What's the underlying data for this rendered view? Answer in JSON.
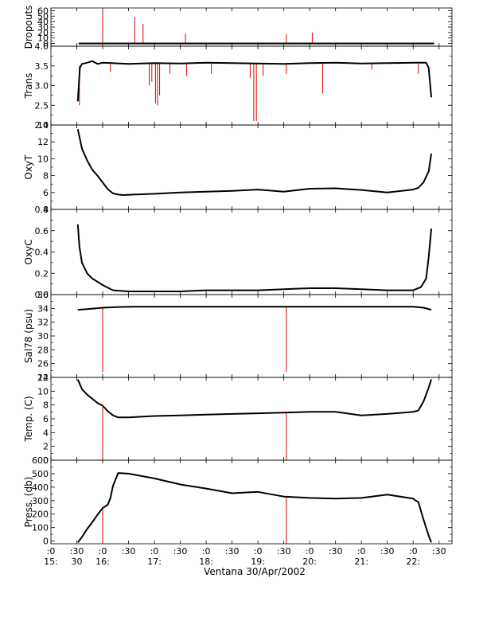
{
  "colors": {
    "data": "#000000",
    "spike": "#dd0000",
    "axis": "#000000"
  },
  "chart_data": {
    "type": "line",
    "xlabel": "Ventana 30/Apr/2002",
    "x_ticks": [
      {
        "t": 15.0,
        "top": ":0",
        "bottom": "15:"
      },
      {
        "t": 15.5,
        "top": ":30",
        "bottom": "30"
      },
      {
        "t": 16.0,
        "top": ":0",
        "bottom": "16:"
      },
      {
        "t": 16.5,
        "top": ":30",
        "bottom": ""
      },
      {
        "t": 17.0,
        "top": ":0",
        "bottom": "17:"
      },
      {
        "t": 17.5,
        "top": ":30",
        "bottom": ""
      },
      {
        "t": 18.0,
        "top": ":0",
        "bottom": "18:"
      },
      {
        "t": 18.5,
        "top": ":30",
        "bottom": ""
      },
      {
        "t": 19.0,
        "top": ":0",
        "bottom": "19:"
      },
      {
        "t": 19.5,
        "top": ":30",
        "bottom": ""
      },
      {
        "t": 20.0,
        "top": ":0",
        "bottom": "20:"
      },
      {
        "t": 20.5,
        "top": ":30",
        "bottom": ""
      },
      {
        "t": 21.0,
        "top": ":0",
        "bottom": "21:"
      },
      {
        "t": 21.5,
        "top": ":30",
        "bottom": ""
      },
      {
        "t": 22.0,
        "top": ":0",
        "bottom": "22:"
      },
      {
        "t": 22.5,
        "top": ":30",
        "bottom": ""
      }
    ],
    "xlim": [
      15.0,
      22.75
    ],
    "panels": [
      {
        "id": "dropouts",
        "ylabel": "Dropouts",
        "ylim": [
          -5,
          65
        ],
        "y_ticks": [
          "0",
          "10",
          "20",
          "30",
          "40",
          "50",
          "60"
        ],
        "y_tick_values": [
          0,
          10,
          20,
          30,
          40,
          50,
          60
        ],
        "series": [
          {
            "x": [
              15.55,
              22.4
            ],
            "y": [
              0,
              0
            ]
          }
        ],
        "spikes": [
          {
            "x": 16.0,
            "from": 0,
            "to": 62
          },
          {
            "x": 16.62,
            "from": 0,
            "to": 48
          },
          {
            "x": 16.78,
            "from": 0,
            "to": 36
          },
          {
            "x": 17.6,
            "from": 0,
            "to": 18
          },
          {
            "x": 19.55,
            "from": 0,
            "to": 17
          },
          {
            "x": 20.05,
            "from": 0,
            "to": 20
          }
        ]
      },
      {
        "id": "trans",
        "ylabel": "Trans",
        "ylim": [
          2.0,
          4.0
        ],
        "y_ticks": [
          "2.0",
          "2.5",
          "3.0",
          "3.5",
          "4.0"
        ],
        "y_tick_values": [
          2.0,
          2.5,
          3.0,
          3.5,
          4.0
        ],
        "series": [
          {
            "x": [
              15.52,
              15.56,
              15.6,
              15.7,
              15.8,
              15.9,
              16.0,
              16.5,
              17.0,
              17.5,
              18.0,
              18.5,
              19.0,
              19.5,
              20.0,
              20.5,
              21.0,
              21.5,
              22.0,
              22.25,
              22.3,
              22.33,
              22.35
            ],
            "y": [
              2.6,
              3.45,
              3.55,
              3.58,
              3.62,
              3.55,
              3.58,
              3.55,
              3.57,
              3.56,
              3.58,
              3.57,
              3.56,
              3.55,
              3.57,
              3.58,
              3.56,
              3.57,
              3.58,
              3.58,
              3.45,
              3.0,
              2.7
            ]
          }
        ],
        "spikes": [
          {
            "x": 15.55,
            "from": 3.5,
            "to": 2.5
          },
          {
            "x": 16.15,
            "from": 3.55,
            "to": 3.35
          },
          {
            "x": 16.9,
            "from": 3.55,
            "to": 3.0
          },
          {
            "x": 16.95,
            "from": 3.55,
            "to": 3.1
          },
          {
            "x": 17.02,
            "from": 3.55,
            "to": 2.55
          },
          {
            "x": 17.06,
            "from": 3.55,
            "to": 2.5
          },
          {
            "x": 17.1,
            "from": 3.55,
            "to": 2.75
          },
          {
            "x": 17.3,
            "from": 3.55,
            "to": 3.3
          },
          {
            "x": 17.62,
            "from": 3.55,
            "to": 3.25
          },
          {
            "x": 18.1,
            "from": 3.55,
            "to": 3.3
          },
          {
            "x": 18.85,
            "from": 3.55,
            "to": 3.2
          },
          {
            "x": 18.92,
            "from": 3.55,
            "to": 2.1
          },
          {
            "x": 18.97,
            "from": 3.55,
            "to": 2.1
          },
          {
            "x": 19.1,
            "from": 3.55,
            "to": 3.25
          },
          {
            "x": 19.55,
            "from": 3.55,
            "to": 3.3
          },
          {
            "x": 20.25,
            "from": 3.55,
            "to": 2.8
          },
          {
            "x": 21.2,
            "from": 3.55,
            "to": 3.4
          },
          {
            "x": 22.1,
            "from": 3.55,
            "to": 3.3
          }
        ]
      },
      {
        "id": "oxyt",
        "ylabel": "OxyT",
        "ylim": [
          4,
          14
        ],
        "y_ticks": [
          "4",
          "6",
          "8",
          "10",
          "12",
          "14"
        ],
        "y_tick_values": [
          4,
          6,
          8,
          10,
          12,
          14
        ],
        "series": [
          {
            "x": [
              15.52,
              15.6,
              15.7,
              15.8,
              15.9,
              16.0,
              16.1,
              16.2,
              16.3,
              16.4,
              16.6,
              17.0,
              17.5,
              18.0,
              18.5,
              19.0,
              19.5,
              20.0,
              20.5,
              21.0,
              21.5,
              22.0,
              22.1,
              22.2,
              22.3,
              22.35
            ],
            "y": [
              13.5,
              11.2,
              9.8,
              8.7,
              8.0,
              7.2,
              6.4,
              5.9,
              5.75,
              5.7,
              5.75,
              5.85,
              6.0,
              6.1,
              6.2,
              6.35,
              6.1,
              6.45,
              6.5,
              6.3,
              6.0,
              6.35,
              6.55,
              7.2,
              8.5,
              10.6
            ]
          }
        ],
        "spikes": []
      },
      {
        "id": "oxyc",
        "ylabel": "OxyC",
        "ylim": [
          0.0,
          0.8
        ],
        "y_ticks": [
          "0.0",
          "0.2",
          "0.4",
          "0.6",
          "0.8"
        ],
        "y_tick_values": [
          0.0,
          0.2,
          0.4,
          0.6,
          0.8
        ],
        "series": [
          {
            "x": [
              15.52,
              15.55,
              15.6,
              15.7,
              15.8,
              15.9,
              16.0,
              16.2,
              16.5,
              17.0,
              17.5,
              18.0,
              18.5,
              19.0,
              19.5,
              20.0,
              20.5,
              21.0,
              21.5,
              22.0,
              22.15,
              22.25,
              22.3,
              22.35
            ],
            "y": [
              0.66,
              0.45,
              0.3,
              0.2,
              0.15,
              0.12,
              0.09,
              0.04,
              0.03,
              0.03,
              0.03,
              0.04,
              0.04,
              0.04,
              0.05,
              0.06,
              0.06,
              0.05,
              0.04,
              0.04,
              0.07,
              0.15,
              0.35,
              0.62
            ]
          }
        ],
        "spikes": []
      },
      {
        "id": "sal78",
        "ylabel": "Sal78 (psu)",
        "ylim": [
          24,
          36
        ],
        "y_ticks": [
          "24",
          "26",
          "28",
          "30",
          "32",
          "34",
          "36"
        ],
        "y_tick_values": [
          24,
          26,
          28,
          30,
          32,
          34,
          36
        ],
        "series": [
          {
            "x": [
              15.52,
              15.7,
              16.0,
              16.3,
              16.6,
              17.0,
              18.0,
              19.0,
              20.0,
              21.0,
              22.0,
              22.2,
              22.35
            ],
            "y": [
              33.8,
              33.9,
              34.1,
              34.2,
              34.25,
              34.25,
              34.25,
              34.25,
              34.25,
              34.25,
              34.25,
              34.1,
              33.8
            ]
          }
        ],
        "spikes": [
          {
            "x": 16.0,
            "from": 34.1,
            "to": 24.8
          },
          {
            "x": 19.55,
            "from": 34.25,
            "to": 24.8
          }
        ]
      },
      {
        "id": "temp",
        "ylabel": "Temp. (C)",
        "ylim": [
          0,
          12
        ],
        "y_ticks": [
          "0",
          "2",
          "4",
          "6",
          "8",
          "10",
          "12"
        ],
        "y_tick_values": [
          0,
          2,
          4,
          6,
          8,
          10,
          12
        ],
        "series": [
          {
            "x": [
              15.52,
              15.6,
              15.7,
              15.8,
              15.9,
              16.0,
              16.1,
              16.2,
              16.3,
              16.5,
              17.0,
              17.5,
              18.0,
              18.5,
              19.0,
              19.5,
              20.0,
              20.5,
              21.0,
              21.5,
              22.0,
              22.1,
              22.2,
              22.3,
              22.35
            ],
            "y": [
              11.7,
              10.3,
              9.5,
              8.9,
              8.3,
              7.9,
              7.1,
              6.5,
              6.2,
              6.2,
              6.4,
              6.5,
              6.6,
              6.7,
              6.8,
              6.9,
              7.0,
              7.0,
              6.5,
              6.7,
              7.0,
              7.2,
              8.5,
              10.5,
              11.7
            ]
          }
        ],
        "spikes": [
          {
            "x": 16.0,
            "from": 7.9,
            "to": -0.3
          },
          {
            "x": 19.55,
            "from": 6.9,
            "to": -0.3
          }
        ]
      },
      {
        "id": "press",
        "ylabel": "Press. (db)",
        "ylim": [
          -20,
          600
        ],
        "y_ticks": [
          "0",
          "100",
          "200",
          "300",
          "400",
          "500",
          "600"
        ],
        "y_tick_values": [
          0,
          100,
          200,
          300,
          400,
          500,
          600
        ],
        "series": [
          {
            "x": [
              15.52,
              15.6,
              15.7,
              15.8,
              15.9,
              16.0,
              16.1,
              16.15,
              16.2,
              16.3,
              16.5,
              17.0,
              17.5,
              18.0,
              18.5,
              19.0,
              19.5,
              20.0,
              20.5,
              21.0,
              21.5,
              22.0,
              22.05,
              22.1,
              22.2,
              22.3,
              22.35
            ],
            "y": [
              -10,
              30,
              90,
              140,
              195,
              245,
              270,
              320,
              410,
              505,
              500,
              465,
              420,
              390,
              355,
              365,
              330,
              320,
              315,
              320,
              345,
              315,
              300,
              290,
              160,
              40,
              -10
            ]
          }
        ],
        "spikes": [
          {
            "x": 16.0,
            "from": 245,
            "to": -20
          },
          {
            "x": 19.55,
            "from": 330,
            "to": -20
          }
        ]
      }
    ]
  }
}
